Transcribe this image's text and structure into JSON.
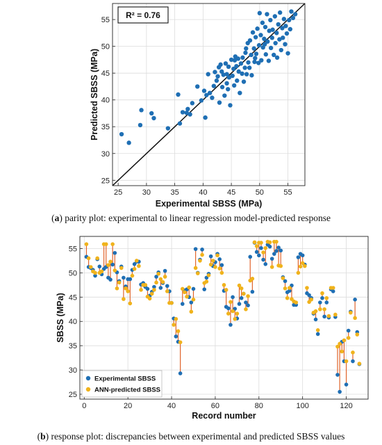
{
  "chart_data": [
    {
      "type": "scatter",
      "xlabel": "Experimental SBSS (MPa)",
      "ylabel": "Predicted SBSS (MPa)",
      "xlim": [
        24,
        58
      ],
      "ylim": [
        24,
        58
      ],
      "xticks": [
        25,
        30,
        35,
        40,
        45,
        50,
        55
      ],
      "yticks": [
        25,
        30,
        35,
        40,
        45,
        50,
        55
      ],
      "grid": true,
      "annotation": "R² = 0.76",
      "reference_line": "y = x",
      "color": "#1f6fb4",
      "points": [
        [
          25.6,
          33.6
        ],
        [
          26.9,
          32.0
        ],
        [
          28.9,
          35.3
        ],
        [
          29.1,
          38.1
        ],
        [
          30.9,
          37.5
        ],
        [
          31.3,
          36.6
        ],
        [
          33.8,
          34.7
        ],
        [
          35.6,
          41.0
        ],
        [
          35.9,
          35.6
        ],
        [
          36.4,
          37.7
        ],
        [
          37.1,
          37.6
        ],
        [
          37.3,
          38.3
        ],
        [
          37.7,
          37.3
        ],
        [
          38.1,
          39.4
        ],
        [
          39.0,
          42.5
        ],
        [
          39.7,
          39.9
        ],
        [
          40.2,
          41.7
        ],
        [
          40.4,
          36.7
        ],
        [
          40.6,
          40.9
        ],
        [
          40.9,
          44.8
        ],
        [
          41.2,
          41.3
        ],
        [
          41.6,
          40.4
        ],
        [
          41.9,
          42.6
        ],
        [
          42.1,
          45.2
        ],
        [
          42.4,
          43.6
        ],
        [
          42.6,
          44.4
        ],
        [
          42.8,
          46.1
        ],
        [
          42.9,
          39.5
        ],
        [
          43.1,
          46.6
        ],
        [
          43.3,
          45.3
        ],
        [
          43.4,
          42.4
        ],
        [
          43.6,
          44.7
        ],
        [
          43.8,
          40.8
        ],
        [
          44.0,
          46.8
        ],
        [
          44.2,
          43.1
        ],
        [
          44.4,
          42.0
        ],
        [
          44.5,
          46.2
        ],
        [
          44.6,
          44.2
        ],
        [
          44.8,
          39.0
        ],
        [
          45.0,
          47.5
        ],
        [
          45.2,
          44.5
        ],
        [
          45.4,
          45.8
        ],
        [
          45.5,
          42.7
        ],
        [
          45.7,
          48.1
        ],
        [
          45.9,
          46.3
        ],
        [
          46.0,
          43.6
        ],
        [
          46.2,
          47.7
        ],
        [
          46.3,
          45.3
        ],
        [
          46.5,
          41.3
        ],
        [
          46.7,
          46.8
        ],
        [
          46.9,
          44.9
        ],
        [
          47.0,
          47.9
        ],
        [
          47.2,
          43.4
        ],
        [
          47.4,
          46.0
        ],
        [
          47.5,
          48.8
        ],
        [
          47.7,
          44.8
        ],
        [
          47.9,
          50.6
        ],
        [
          48.0,
          47.0
        ],
        [
          48.2,
          46.0
        ],
        [
          48.3,
          51.1
        ],
        [
          48.5,
          48.4
        ],
        [
          48.6,
          44.6
        ],
        [
          48.8,
          52.6
        ],
        [
          49.0,
          49.6
        ],
        [
          49.1,
          47.1
        ],
        [
          49.3,
          51.7
        ],
        [
          49.4,
          48.6
        ],
        [
          49.6,
          53.3
        ],
        [
          49.8,
          46.9
        ],
        [
          49.9,
          50.2
        ],
        [
          50.0,
          56.2
        ],
        [
          50.2,
          52.1
        ],
        [
          50.3,
          47.4
        ],
        [
          50.5,
          54.4
        ],
        [
          50.6,
          49.8
        ],
        [
          50.8,
          51.4
        ],
        [
          51.0,
          53.6
        ],
        [
          51.1,
          48.5
        ],
        [
          51.3,
          56.0
        ],
        [
          51.4,
          50.9
        ],
        [
          51.6,
          47.3
        ],
        [
          51.7,
          52.9
        ],
        [
          51.9,
          54.9
        ],
        [
          52.0,
          49.7
        ],
        [
          52.2,
          51.6
        ],
        [
          52.3,
          53.1
        ],
        [
          52.5,
          48.4
        ],
        [
          52.7,
          55.6
        ],
        [
          52.8,
          50.6
        ],
        [
          53.0,
          52.5
        ],
        [
          53.1,
          47.9
        ],
        [
          53.3,
          54.1
        ],
        [
          53.5,
          51.3
        ],
        [
          53.6,
          56.3
        ],
        [
          53.8,
          49.3
        ],
        [
          54.0,
          53.4
        ],
        [
          54.1,
          51.6
        ],
        [
          54.3,
          55.1
        ],
        [
          54.5,
          50.4
        ],
        [
          54.6,
          53.8
        ],
        [
          54.8,
          52.4
        ],
        [
          55.0,
          48.7
        ],
        [
          55.2,
          54.9
        ],
        [
          55.4,
          53.2
        ],
        [
          55.6,
          56.5
        ],
        [
          55.9,
          55.3
        ],
        [
          56.3,
          56.0
        ],
        [
          44.2,
          44.8
        ],
        [
          45.6,
          47.4
        ],
        [
          47.6,
          49.6
        ],
        [
          49.2,
          47.8
        ],
        [
          50.9,
          50.4
        ]
      ]
    },
    {
      "type": "line",
      "xlabel": "Record number",
      "ylabel": "SBSS (MPa)",
      "xlim": [
        -2,
        130
      ],
      "ylim": [
        24,
        57.5
      ],
      "xticks": [
        0,
        20,
        40,
        60,
        80,
        100,
        120
      ],
      "yticks": [
        25,
        30,
        35,
        40,
        45,
        50,
        55
      ],
      "grid": true,
      "legend_position": "bottom-left",
      "discrepancy_color": "#e0632a",
      "series": [
        {
          "name": "Experimental SBSS",
          "color": "#1f6fb4",
          "values": [
            53.3,
            51.2,
            51.0,
            50.6,
            49.4,
            52.8,
            51.3,
            49.7,
            50.8,
            51.2,
            49.0,
            48.6,
            51.7,
            54.1,
            50.1,
            48.3,
            51.3,
            49.0,
            47.2,
            48.7,
            48.7,
            50.6,
            51.8,
            52.3,
            52.3,
            47.6,
            47.9,
            47.1,
            46.7,
            45.3,
            46.1,
            47.1,
            49.2,
            50.1,
            46.9,
            47.9,
            50.4,
            47.3,
            46.2,
            43.8,
            40.6,
            36.9,
            35.8,
            29.3,
            43.6,
            46.4,
            46.6,
            45.0,
            43.9,
            46.7,
            54.9,
            50.0,
            52.7,
            54.8,
            46.6,
            49.0,
            49.8,
            53.4,
            51.4,
            52.2,
            53.9,
            52.8,
            51.6,
            46.3,
            43.0,
            42.7,
            39.3,
            45.0,
            42.6,
            40.6,
            43.6,
            44.8,
            45.7,
            43.9,
            43.3,
            53.3,
            46.1,
            56.2,
            54.3,
            53.6,
            55.1,
            52.7,
            51.8,
            55.8,
            55.4,
            52.9,
            53.9,
            54.5,
            55.2,
            54.6,
            49.1,
            48.3,
            46.0,
            46.3,
            47.4,
            43.4,
            43.4,
            53.2,
            53.9,
            53.6,
            51.7,
            45.8,
            45.4,
            44.8,
            41.6,
            40.4,
            37.4,
            43.9,
            44.8,
            41.0,
            43.9,
            40.8,
            46.6,
            46.2,
            40.9,
            29.0,
            25.5,
            35.8,
            31.8,
            27.0,
            38.1,
            42.0,
            31.8,
            44.5,
            37.8,
            31.2
          ]
        },
        {
          "name": "ANN-predicted SBSS",
          "color": "#f0b31c",
          "values": [
            55.9,
            53.0,
            51.2,
            50.3,
            50.0,
            53.0,
            50.0,
            50.3,
            55.9,
            55.9,
            51.6,
            52.3,
            55.9,
            50.5,
            46.8,
            48.0,
            51.0,
            44.6,
            46.8,
            46.2,
            43.7,
            49.4,
            50.8,
            52.5,
            51.4,
            46.5,
            47.5,
            47.5,
            45.1,
            44.7,
            45.7,
            46.5,
            48.0,
            49.8,
            48.7,
            48.1,
            49.2,
            46.2,
            43.8,
            43.8,
            39.3,
            40.5,
            38.0,
            35.7,
            46.7,
            46.0,
            45.1,
            47.0,
            42.0,
            44.5,
            51.0,
            49.9,
            52.5,
            53.7,
            47.9,
            48.2,
            49.5,
            51.7,
            52.5,
            51.2,
            53.6,
            50.9,
            50.0,
            47.5,
            46.5,
            41.6,
            44.0,
            42.1,
            40.5,
            41.6,
            47.4,
            46.8,
            45.7,
            42.5,
            45.2,
            48.4,
            48.8,
            56.3,
            55.5,
            56.2,
            56.2,
            54.2,
            55.1,
            56.4,
            56.3,
            51.2,
            56.4,
            56.4,
            51.5,
            51.4,
            48.9,
            46.8,
            44.8,
            46.9,
            44.6,
            44.1,
            43.9,
            50.0,
            51.3,
            52.0,
            51.4,
            46.9,
            44.0,
            44.5,
            41.8,
            42.1,
            38.2,
            42.5,
            45.8,
            42.5,
            44.8,
            41.1,
            46.9,
            46.9,
            41.4,
            34.8,
            35.4,
            33.8,
            36.1,
            31.8,
            36.6,
            41.8,
            33.6,
            40.7,
            37.3,
            31.3
          ]
        }
      ]
    }
  ],
  "captions": {
    "a_label": "a",
    "a_text": " parity plot: experimental to linear regression model-predicted response",
    "b_label": "b",
    "b_text": " response plot: discrepancies between experimental and predicted SBSS values"
  }
}
